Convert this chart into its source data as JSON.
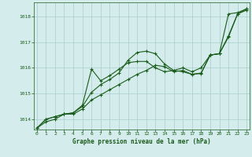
{
  "title": "Graphe pression niveau de la mer (hPa)",
  "background_color": "#d4ecec",
  "grid_color": "#aacccc",
  "line_color": "#1a5c1a",
  "xlim": [
    -0.3,
    23.3
  ],
  "ylim": [
    1013.6,
    1018.55
  ],
  "yticks": [
    1014,
    1015,
    1016,
    1017,
    1018
  ],
  "xticks": [
    0,
    1,
    2,
    3,
    4,
    5,
    6,
    7,
    8,
    9,
    10,
    11,
    12,
    13,
    14,
    15,
    16,
    17,
    18,
    19,
    20,
    21,
    22,
    23
  ],
  "series": [
    [
      1013.65,
      1013.9,
      1014.0,
      1014.2,
      1014.2,
      1014.4,
      1014.75,
      1014.95,
      1015.15,
      1015.35,
      1015.55,
      1015.75,
      1015.9,
      1016.1,
      1016.05,
      1015.85,
      1015.9,
      1015.75,
      1015.8,
      1016.5,
      1016.55,
      1018.1,
      1018.15,
      1018.3
    ],
    [
      1013.65,
      1014.0,
      1014.1,
      1014.2,
      1014.25,
      1014.5,
      1015.05,
      1015.35,
      1015.55,
      1015.8,
      1016.3,
      1016.6,
      1016.65,
      1016.55,
      1016.15,
      1015.9,
      1015.85,
      1015.75,
      1015.78,
      1016.5,
      1016.55,
      1017.2,
      1018.1,
      1018.25
    ],
    [
      1013.65,
      1014.0,
      1014.1,
      1014.2,
      1014.25,
      1014.55,
      1015.95,
      1015.5,
      1015.7,
      1015.95,
      1016.2,
      1016.25,
      1016.25,
      1016.0,
      1015.85,
      1015.9,
      1016.0,
      1015.85,
      1016.0,
      1016.5,
      1016.55,
      1017.25,
      1018.1,
      1018.3
    ]
  ]
}
